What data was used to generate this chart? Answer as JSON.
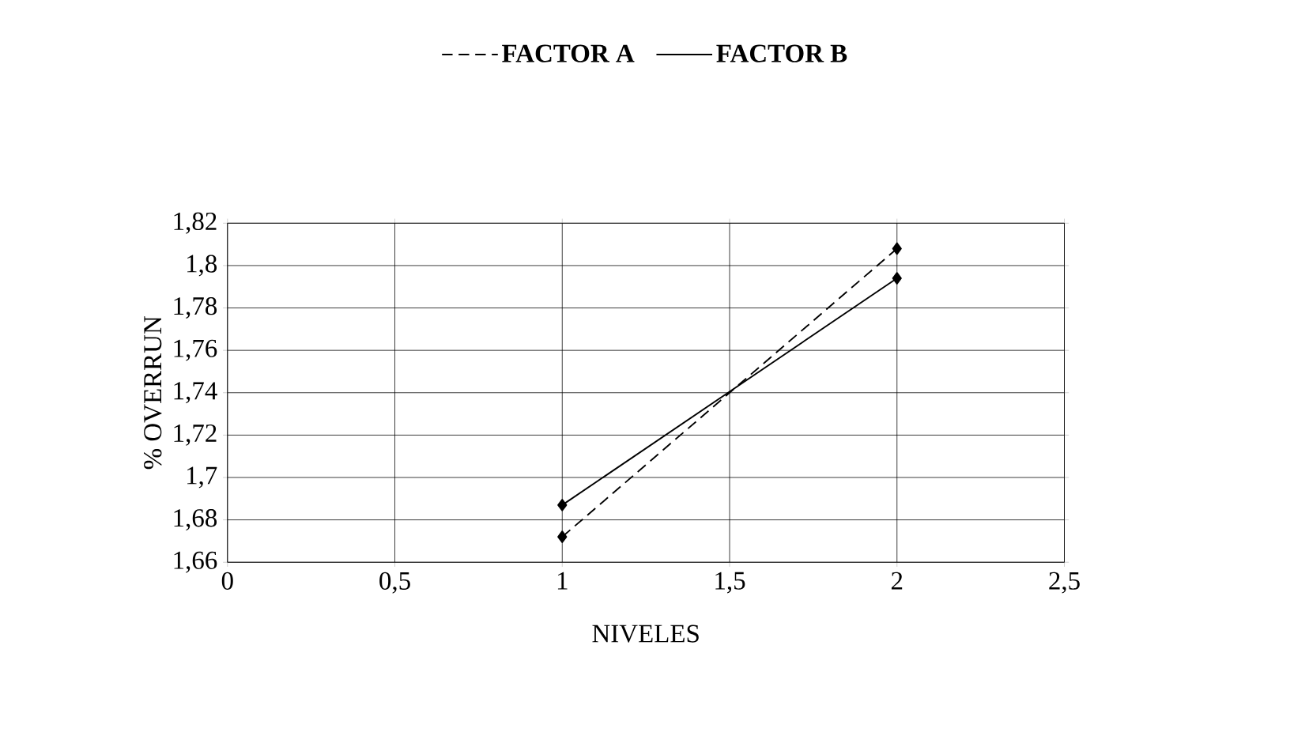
{
  "chart_data": {
    "type": "line",
    "xlabel": "NIVELES",
    "ylabel": "% OVERRUN",
    "x": [
      1,
      2
    ],
    "series": [
      {
        "name": "FACTOR A",
        "color": "#000000",
        "values": [
          1.672,
          1.808
        ],
        "line_style": "dashed"
      },
      {
        "name": "FACTOR B",
        "color": "#000000",
        "values": [
          1.687,
          1.794
        ],
        "line_style": "solid"
      }
    ],
    "xlim": [
      0,
      2.5
    ],
    "xticks": [
      {
        "value": 0,
        "label": "0"
      },
      {
        "value": 0.5,
        "label": "0,5"
      },
      {
        "value": 1,
        "label": "1"
      },
      {
        "value": 1.5,
        "label": "1,5"
      },
      {
        "value": 2,
        "label": "2"
      },
      {
        "value": 2.5,
        "label": "2,5"
      }
    ],
    "ylim": [
      1.66,
      1.82
    ],
    "yticks": [
      {
        "value": 1.66,
        "label": "1,66"
      },
      {
        "value": 1.68,
        "label": "1,68"
      },
      {
        "value": 1.7,
        "label": "1,7"
      },
      {
        "value": 1.72,
        "label": "1,72"
      },
      {
        "value": 1.74,
        "label": "1,74"
      },
      {
        "value": 1.76,
        "label": "1,76"
      },
      {
        "value": 1.78,
        "label": "1,78"
      },
      {
        "value": 1.8,
        "label": "1,8"
      },
      {
        "value": 1.82,
        "label": "1,82"
      }
    ],
    "grid": true,
    "legend": "top",
    "marker": "diamond"
  }
}
